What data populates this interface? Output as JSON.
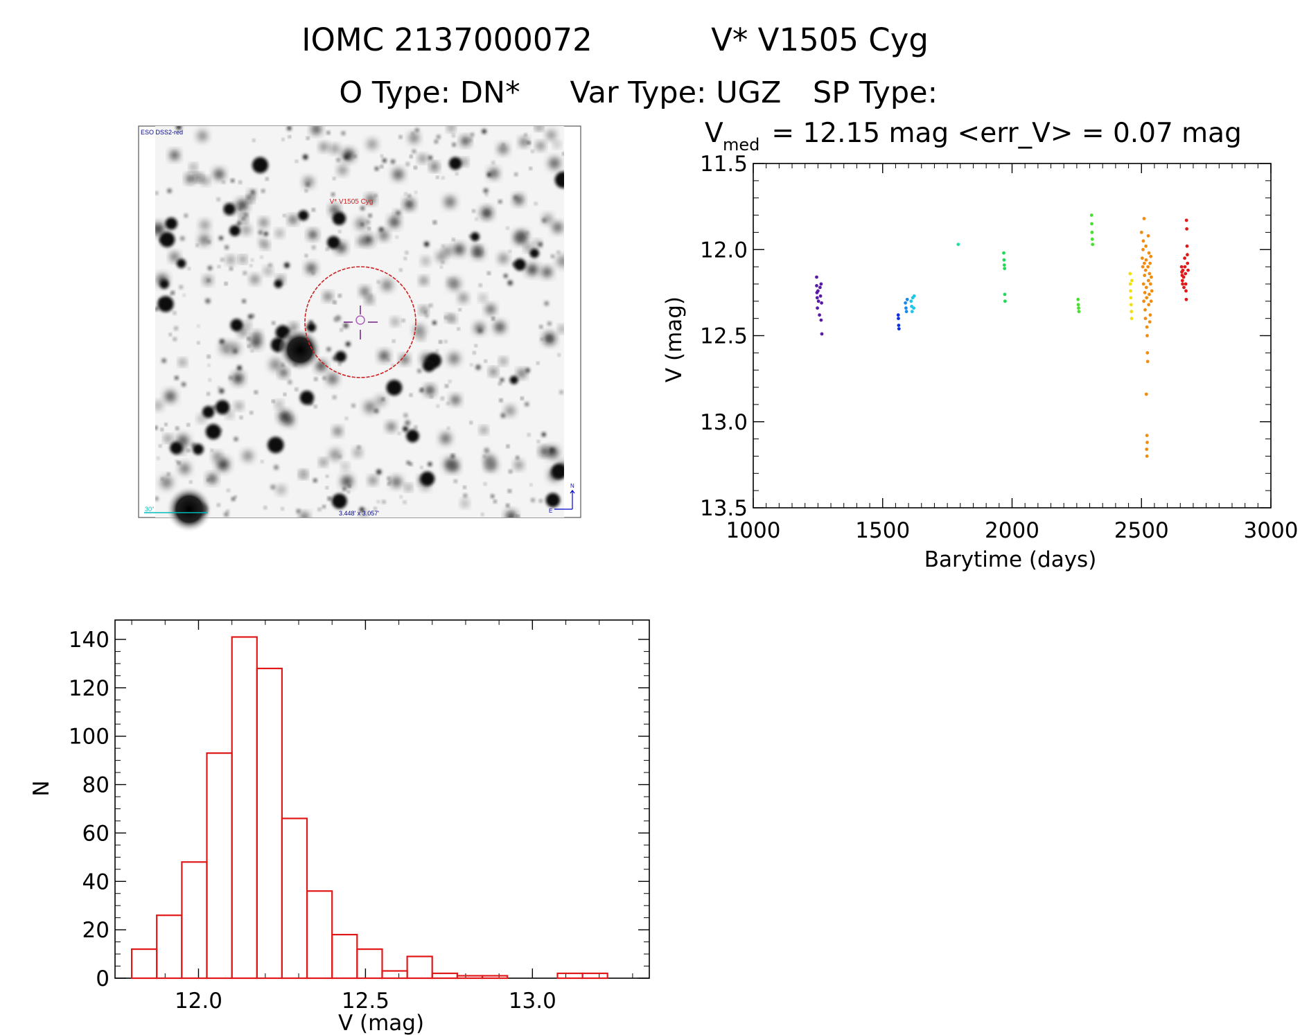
{
  "header": {
    "line1_id": "IOMC 2137000072",
    "line1_name": "V* V1505 Cyg",
    "line2_otype": "O Type: DN*",
    "line2_vartype": "Var Type: UGZ",
    "line2_sptype": "SP Type:"
  },
  "finder_image": {
    "survey_label": "ESO DSS2-red",
    "target_label": "V* V1505 Cyg",
    "scale_bar_label": "30\"",
    "field_size_label": "3.448' x 3.057'",
    "compass_north": "N",
    "compass_east": "E",
    "colors": {
      "circle": "#cc2222",
      "crosshair": "#7a2a8a",
      "scale_bar": "#00bbbb",
      "compass": "#0000cc",
      "label_blue": "#000088"
    }
  },
  "chart_data": [
    {
      "type": "scatter",
      "title_prefix": "V",
      "title_sub": "med",
      "title_rest": " = 12.15 mag <err_V> = 0.07 mag",
      "xlabel": "Barytime (days)",
      "ylabel": "V (mag)",
      "xlim": [
        1000,
        3000
      ],
      "ylim": [
        13.5,
        11.5
      ],
      "y_inverted": true,
      "xticks": [
        1000,
        1500,
        2000,
        2500,
        3000
      ],
      "xtick_labels": [
        "1000",
        "1500",
        "2000",
        "2500",
        "3000"
      ],
      "yticks": [
        11.5,
        12.0,
        12.5,
        13.0,
        13.5
      ],
      "ytick_labels": [
        "11.5",
        "12.0",
        "12.5",
        "13.0",
        "13.5"
      ],
      "groups": [
        {
          "color": "#5a1aa8",
          "points": [
            [
              1245,
              12.16
            ],
            [
              1245,
              12.21
            ],
            [
              1246,
              12.25
            ],
            [
              1247,
              12.28
            ],
            [
              1248,
              12.34
            ],
            [
              1250,
              12.24
            ],
            [
              1252,
              12.3
            ],
            [
              1256,
              12.38
            ],
            [
              1258,
              12.22
            ],
            [
              1260,
              12.27
            ],
            [
              1262,
              12.2
            ],
            [
              1262,
              12.41
            ],
            [
              1264,
              12.31
            ],
            [
              1265,
              12.49
            ]
          ]
        },
        {
          "color": "#0a2ee0",
          "points": [
            [
              1560,
              12.38
            ],
            [
              1561,
              12.4
            ],
            [
              1562,
              12.44
            ],
            [
              1563,
              12.46
            ]
          ]
        },
        {
          "color": "#1a8ae8",
          "points": [
            [
              1588,
              12.31
            ],
            [
              1590,
              12.34
            ],
            [
              1592,
              12.36
            ],
            [
              1595,
              12.29
            ]
          ]
        },
        {
          "color": "#20c6e8",
          "points": [
            [
              1610,
              12.3
            ],
            [
              1612,
              12.33
            ],
            [
              1614,
              12.36
            ],
            [
              1616,
              12.28
            ],
            [
              1620,
              12.34
            ],
            [
              1622,
              12.27
            ]
          ]
        },
        {
          "color": "#20e0a8",
          "points": [
            [
              1792,
              11.97
            ]
          ]
        },
        {
          "color": "#22d858",
          "points": [
            [
              1968,
              12.02
            ],
            [
              1969,
              12.06
            ],
            [
              1970,
              12.09
            ],
            [
              1971,
              12.11
            ],
            [
              1972,
              12.26
            ],
            [
              1973,
              12.3
            ]
          ]
        },
        {
          "color": "#48e030",
          "points": [
            [
              2255,
              12.29
            ],
            [
              2256,
              12.32
            ],
            [
              2257,
              12.34
            ],
            [
              2258,
              12.36
            ],
            [
              2307,
              11.8
            ],
            [
              2308,
              11.85
            ],
            [
              2309,
              11.9
            ],
            [
              2310,
              11.94
            ],
            [
              2311,
              11.97
            ]
          ]
        },
        {
          "color": "#f0e010",
          "points": [
            [
              2456,
              12.14
            ],
            [
              2457,
              12.2
            ],
            [
              2458,
              12.24
            ],
            [
              2459,
              12.28
            ],
            [
              2460,
              12.32
            ],
            [
              2461,
              12.36
            ],
            [
              2462,
              12.4
            ],
            [
              2463,
              12.18
            ]
          ]
        },
        {
          "color": "#f08c10",
          "points": [
            [
              2500,
              11.9
            ],
            [
              2503,
              12.05
            ],
            [
              2505,
              12.1
            ],
            [
              2506,
              12.0
            ],
            [
              2507,
              11.95
            ],
            [
              2508,
              12.2
            ],
            [
              2509,
              12.3
            ],
            [
              2510,
              11.82
            ],
            [
              2511,
              12.08
            ],
            [
              2512,
              12.15
            ],
            [
              2513,
              12.25
            ],
            [
              2514,
              12.35
            ],
            [
              2515,
              12.4
            ],
            [
              2516,
              12.12
            ],
            [
              2517,
              11.98
            ],
            [
              2518,
              12.06
            ],
            [
              2519,
              12.22
            ],
            [
              2520,
              12.28
            ],
            [
              2521,
              12.45
            ],
            [
              2522,
              12.5
            ],
            [
              2523,
              12.6
            ],
            [
              2524,
              12.65
            ],
            [
              2525,
              12.1
            ],
            [
              2526,
              11.92
            ],
            [
              2527,
              12.18
            ],
            [
              2528,
              12.32
            ],
            [
              2529,
              12.02
            ],
            [
              2530,
              12.26
            ],
            [
              2531,
              12.14
            ],
            [
              2532,
              12.42
            ],
            [
              2533,
              12.08
            ],
            [
              2534,
              12.38
            ],
            [
              2535,
              12.2
            ],
            [
              2536,
              12.04
            ],
            [
              2537,
              12.3
            ],
            [
              2538,
              12.16
            ],
            [
              2540,
              12.24
            ],
            [
              2519,
              12.84
            ],
            [
              2521,
              13.08
            ],
            [
              2522,
              13.12
            ],
            [
              2520,
              13.16
            ],
            [
              2521,
              13.2
            ]
          ]
        },
        {
          "color": "#e01818",
          "points": [
            [
              2655,
              12.1
            ],
            [
              2656,
              12.13
            ],
            [
              2657,
              12.15
            ],
            [
              2658,
              12.18
            ],
            [
              2659,
              12.2
            ],
            [
              2660,
              12.12
            ],
            [
              2663,
              12.16
            ],
            [
              2664,
              12.22
            ],
            [
              2667,
              12.05
            ],
            [
              2668,
              12.1
            ],
            [
              2670,
              12.14
            ],
            [
              2671,
              12.2
            ],
            [
              2672,
              12.24
            ],
            [
              2673,
              12.29
            ],
            [
              2674,
              11.83
            ],
            [
              2675,
              11.88
            ],
            [
              2676,
              11.98
            ],
            [
              2677,
              12.03
            ],
            [
              2678,
              12.08
            ],
            [
              2680,
              12.12
            ]
          ]
        }
      ]
    },
    {
      "type": "bar",
      "histogram": true,
      "xlabel": "V (mag)",
      "ylabel": "N",
      "xlim": [
        11.75,
        13.35
      ],
      "ylim": [
        0,
        148
      ],
      "xticks": [
        12.0,
        12.5,
        13.0
      ],
      "xtick_labels": [
        "12.0",
        "12.5",
        "13.0"
      ],
      "yticks": [
        0,
        20,
        40,
        60,
        80,
        100,
        120,
        140
      ],
      "ytick_labels": [
        "0",
        "20",
        "40",
        "60",
        "80",
        "100",
        "120",
        "140"
      ],
      "bin_edges": [
        11.8,
        11.875,
        11.95,
        12.025,
        12.1,
        12.175,
        12.25,
        12.325,
        12.4,
        12.475,
        12.55,
        12.625,
        12.7,
        12.775,
        12.85,
        12.925,
        13.0,
        13.075,
        13.15,
        13.225
      ],
      "counts": [
        12,
        26,
        48,
        93,
        141,
        128,
        66,
        36,
        18,
        12,
        3,
        9,
        2,
        1,
        1,
        0,
        0,
        2,
        2
      ],
      "bar_color": "#e01818"
    }
  ]
}
